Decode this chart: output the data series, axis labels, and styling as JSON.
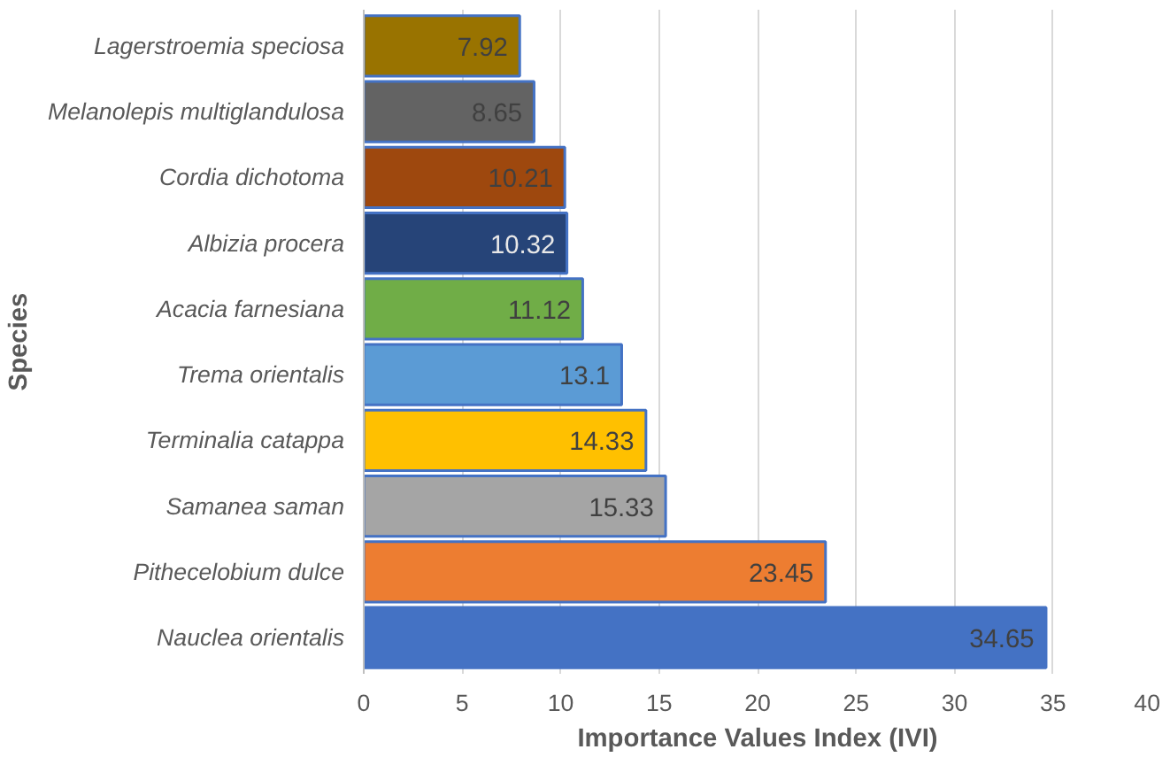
{
  "chart_data": {
    "type": "bar",
    "orientation": "horizontal",
    "xlabel": "Importance Values Index (IVI)",
    "ylabel": "Species",
    "categories": [
      "Lagerstroemia speciosa",
      "Melanolepis multiglandulosa",
      "Cordia dichotoma",
      "Albizia procera",
      "Acacia farnesiana",
      "Trema orientalis",
      "Terminalia catappa",
      "Samanea saman",
      "Pithecelobium dulce",
      "Nauclea orientalis"
    ],
    "values": [
      7.92,
      8.65,
      10.21,
      10.32,
      11.12,
      13.1,
      14.33,
      15.33,
      23.45,
      34.65
    ],
    "colors": [
      "#997300",
      "#636363",
      "#9e480e",
      "#264478",
      "#70ad47",
      "#5b9bd5",
      "#ffc000",
      "#a5a5a5",
      "#ed7d31",
      "#4472c4"
    ],
    "xlim": [
      0,
      40
    ],
    "xticks": [
      0,
      5,
      10,
      15,
      20,
      25,
      30,
      35,
      40
    ],
    "grid": "x",
    "data_labels": true
  }
}
